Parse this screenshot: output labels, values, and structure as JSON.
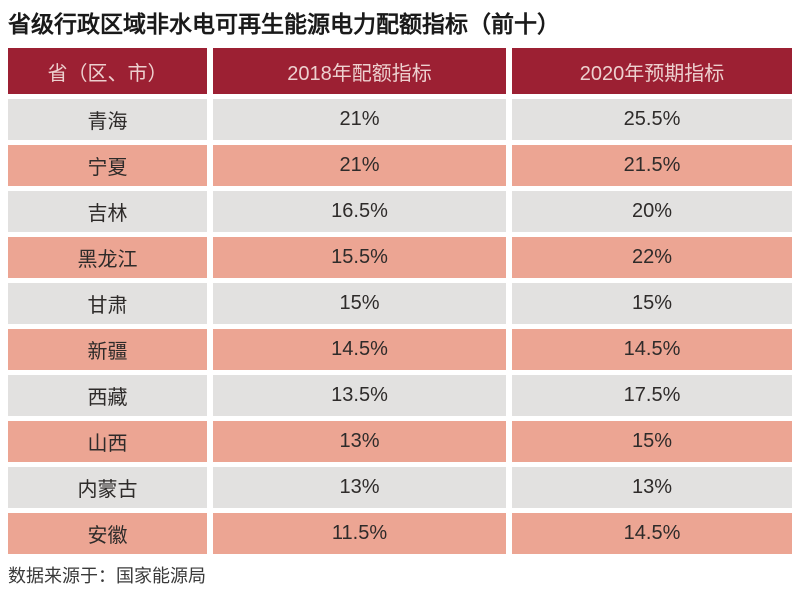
{
  "title": "省级行政区域非水电可再生能源电力配额指标（前十）",
  "source_note": "数据来源于：国家能源局",
  "colors": {
    "header_bg": "#9c2033",
    "header_text": "#edd0cf",
    "row_gray_bg": "#e2e1e0",
    "row_salmon_bg": "#eca593",
    "cell_text": "#2e2b2a",
    "title_text": "#1a1a1a",
    "source_text": "#3a3a3a"
  },
  "chart_data": {
    "type": "table",
    "title": "省级行政区域非水电可再生能源电力配额指标（前十）",
    "columns": [
      "省（区、市）",
      "2018年配额指标",
      "2020年预期指标"
    ],
    "rows": [
      [
        "青海",
        "21%",
        "25.5%"
      ],
      [
        "宁夏",
        "21%",
        "21.5%"
      ],
      [
        "吉林",
        "16.5%",
        "20%"
      ],
      [
        "黑龙江",
        "15.5%",
        "22%"
      ],
      [
        "甘肃",
        "15%",
        "15%"
      ],
      [
        "新疆",
        "14.5%",
        "14.5%"
      ],
      [
        "西藏",
        "13.5%",
        "17.5%"
      ],
      [
        "山西",
        "13%",
        "15%"
      ],
      [
        "内蒙古",
        "13%",
        "13%"
      ],
      [
        "安徽",
        "11.5%",
        "14.5%"
      ]
    ],
    "source": "数据来源于：国家能源局",
    "layout": {
      "striping": "gray/salmon alternating rows",
      "header_style": "dark crimson band",
      "grid": "white gaps between cells"
    }
  }
}
